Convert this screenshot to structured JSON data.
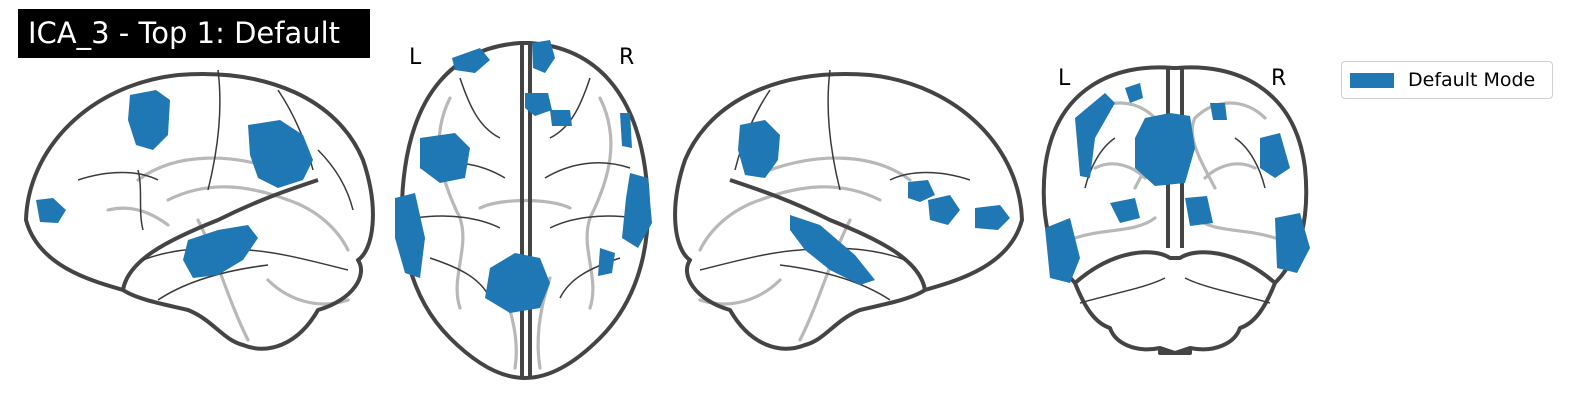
{
  "title": "ICA_3 - Top 1: Default",
  "colors": {
    "blob": "#1f77b4",
    "outline": "#444444",
    "ghost": "#b8b8b8",
    "title_bg": "#000000",
    "title_fg": "#ffffff"
  },
  "views": {
    "axial": {
      "left_label": "L",
      "right_label": "R"
    },
    "coronal": {
      "left_label": "L",
      "right_label": "R"
    }
  },
  "legend": {
    "label": "Default Mode"
  }
}
